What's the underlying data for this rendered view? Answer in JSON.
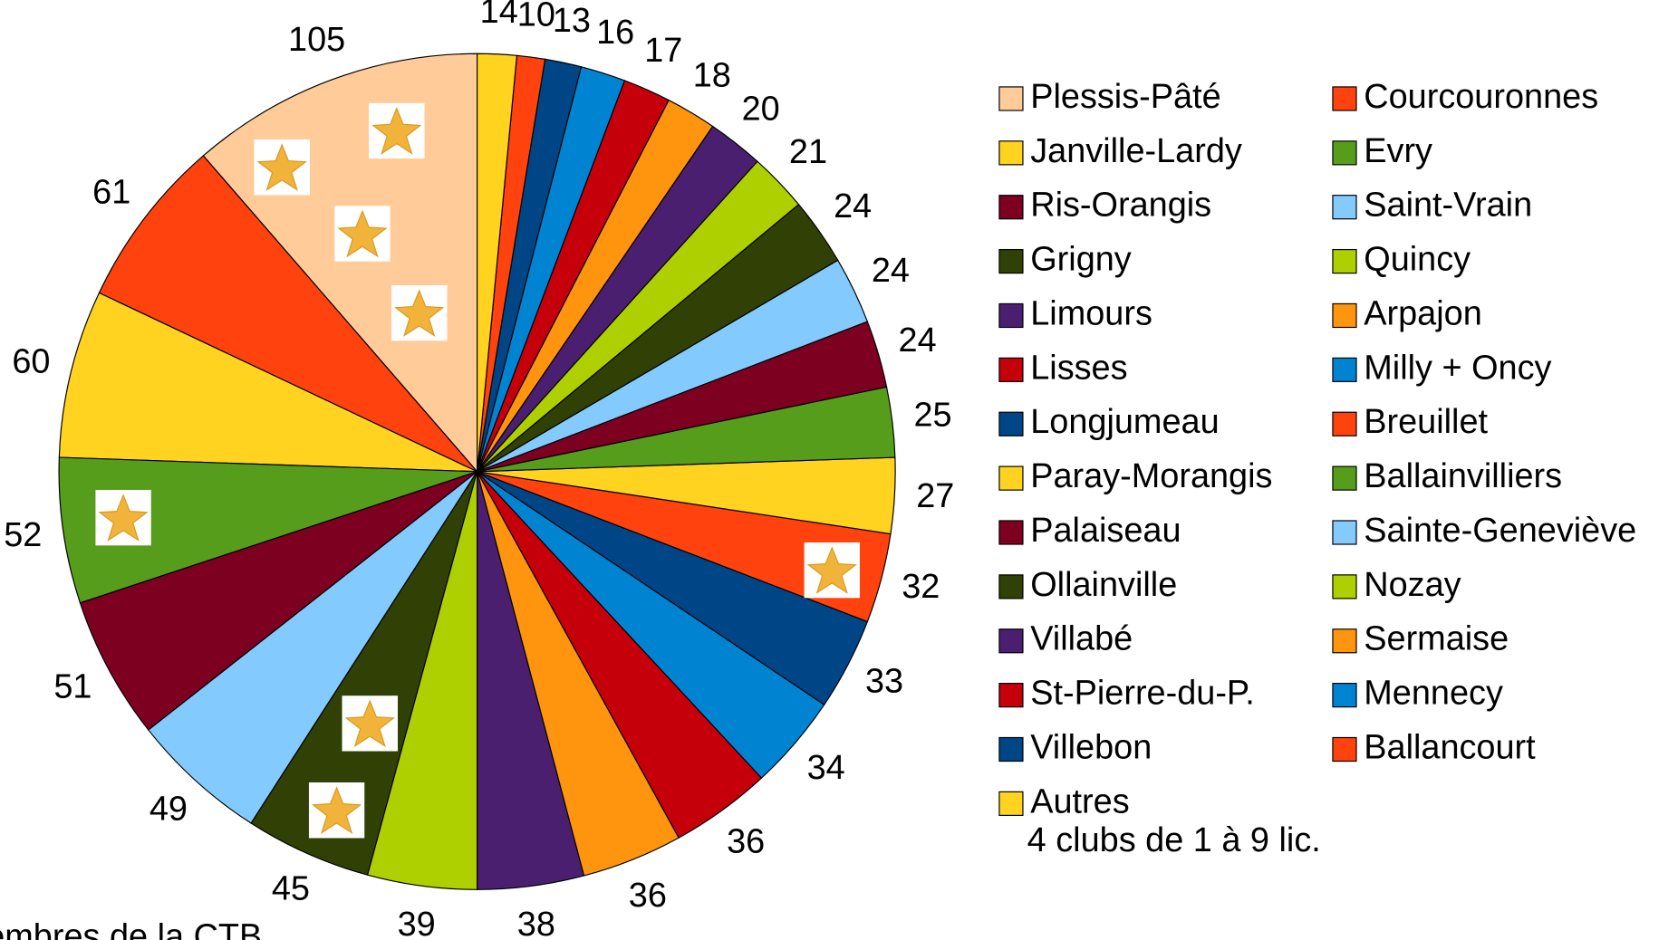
{
  "chart_data": {
    "type": "pie",
    "categories": [
      "Plessis-Pâté",
      "Courcouronnes",
      "Janville-Lardy",
      "Evry",
      "Ris-Orangis",
      "Saint-Vrain",
      "Grigny",
      "Quincy",
      "Limours",
      "Arpajon",
      "Lisses",
      "Milly + Oncy",
      "Longjumeau",
      "Breuillet",
      "Paray-Morangis",
      "Ballainvilliers",
      "Palaiseau",
      "Sainte-Geneviève",
      "Ollainville",
      "Nozay",
      "Villabé",
      "Sermaise",
      "St-Pierre-du-P.",
      "Mennecy",
      "Villebon",
      "Ballancourt",
      "Autres"
    ],
    "values": [
      105,
      61,
      60,
      52,
      51,
      49,
      45,
      39,
      38,
      36,
      36,
      34,
      33,
      32,
      27,
      25,
      24,
      24,
      24,
      21,
      20,
      18,
      17,
      16,
      13,
      10,
      14
    ],
    "colors": [
      "#ffcc99",
      "#ff420e",
      "#ffd320",
      "#579d1c",
      "#7e0021",
      "#83caff",
      "#314004",
      "#aecf00",
      "#4b1f6f",
      "#ff950e",
      "#c5000b",
      "#0084d1",
      "#004586",
      "#ff420e",
      "#ffd320",
      "#579d1c",
      "#7e0021",
      "#83caff",
      "#314004",
      "#aecf00",
      "#4b1f6f",
      "#ff950e",
      "#c5000b",
      "#0084d1",
      "#004586",
      "#ff420e",
      "#ffd320"
    ],
    "legend_note": "4 clubs de 1 à 9 lic.",
    "note": "Membres de la CTB"
  }
}
